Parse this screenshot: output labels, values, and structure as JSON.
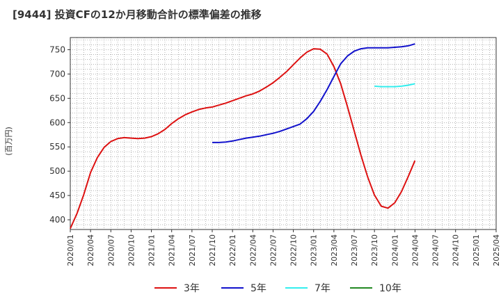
{
  "chart_data": {
    "type": "line",
    "title": "[9444]  投資CFの12か月移動合計の標準偏差の推移",
    "ylabel": "(百万円)",
    "xlabel": "",
    "ylim": [
      380,
      775
    ],
    "yticks": [
      400,
      450,
      500,
      550,
      600,
      650,
      700,
      750
    ],
    "xticks": [
      "2020/01",
      "2020/04",
      "2020/07",
      "2020/10",
      "2021/01",
      "2021/04",
      "2021/07",
      "2021/10",
      "2022/01",
      "2022/04",
      "2022/07",
      "2022/10",
      "2023/01",
      "2023/04",
      "2023/07",
      "2023/10",
      "2024/01",
      "2024/04",
      "2024/07",
      "2024/10",
      "2025/01",
      "2025/04"
    ],
    "grid": true,
    "legend_position": "bottom",
    "colors": {
      "3年": "#dd1111",
      "5年": "#1111cc",
      "7年": "#33eeee",
      "10年": "#228822"
    },
    "series": [
      {
        "name": "3年",
        "color": "#dd1111",
        "x": [
          "2020/01",
          "2020/02",
          "2020/03",
          "2020/04",
          "2020/05",
          "2020/06",
          "2020/07",
          "2020/08",
          "2020/09",
          "2020/10",
          "2020/11",
          "2020/12",
          "2021/01",
          "2021/02",
          "2021/03",
          "2021/04",
          "2021/05",
          "2021/06",
          "2021/07",
          "2021/08",
          "2021/09",
          "2021/10",
          "2021/11",
          "2021/12",
          "2022/01",
          "2022/02",
          "2022/03",
          "2022/04",
          "2022/05",
          "2022/06",
          "2022/07",
          "2022/08",
          "2022/09",
          "2022/10",
          "2022/11",
          "2022/12",
          "2023/01",
          "2023/02",
          "2023/03",
          "2023/04",
          "2023/05",
          "2023/06",
          "2023/07",
          "2023/08",
          "2023/09",
          "2023/10",
          "2023/11",
          "2023/12",
          "2024/01",
          "2024/02",
          "2024/03",
          "2024/04"
        ],
        "values": [
          382,
          413,
          452,
          497,
          528,
          549,
          561,
          567,
          569,
          568,
          567,
          568,
          571,
          577,
          586,
          598,
          608,
          616,
          622,
          627,
          630,
          632,
          636,
          640,
          645,
          650,
          655,
          659,
          665,
          673,
          682,
          693,
          705,
          719,
          733,
          745,
          752,
          751,
          741,
          715,
          680,
          633,
          583,
          533,
          488,
          451,
          428,
          424,
          435,
          458,
          489,
          522
        ]
      },
      {
        "name": "5年",
        "color": "#1111cc",
        "x": [
          "2021/10",
          "2021/11",
          "2021/12",
          "2022/01",
          "2022/02",
          "2022/03",
          "2022/04",
          "2022/05",
          "2022/06",
          "2022/07",
          "2022/08",
          "2022/09",
          "2022/10",
          "2022/11",
          "2022/12",
          "2023/01",
          "2023/02",
          "2023/03",
          "2023/04",
          "2023/05",
          "2023/06",
          "2023/07",
          "2023/08",
          "2023/09",
          "2023/10",
          "2023/11",
          "2023/12",
          "2024/01",
          "2024/02",
          "2024/03",
          "2024/04"
        ],
        "values": [
          559,
          559,
          560,
          562,
          565,
          568,
          570,
          572,
          575,
          578,
          582,
          587,
          592,
          597,
          608,
          623,
          644,
          668,
          695,
          721,
          737,
          747,
          752,
          754,
          754,
          754,
          754,
          755,
          756,
          758,
          762
        ]
      },
      {
        "name": "7年",
        "color": "#33eeee",
        "x": [
          "2023/10",
          "2023/11",
          "2023/12",
          "2024/01",
          "2024/02",
          "2024/03",
          "2024/04"
        ],
        "values": [
          675,
          674,
          674,
          674,
          675,
          677,
          680
        ]
      },
      {
        "name": "10年",
        "color": "#228822",
        "x": [],
        "values": []
      }
    ]
  }
}
